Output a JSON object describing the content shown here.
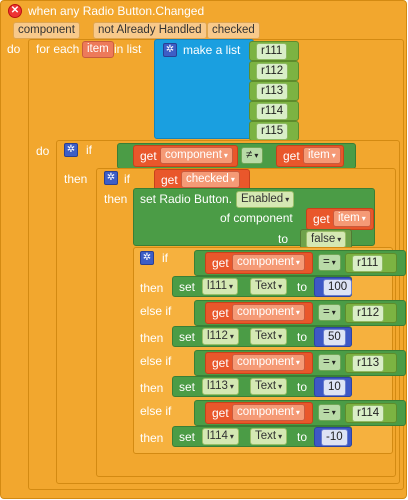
{
  "event": {
    "title": "when any Radio Button.Changed",
    "params": [
      "component",
      "not Already Handled",
      "checked"
    ],
    "do_label": "do"
  },
  "foreach": {
    "label_prefix": "for each",
    "var": "item",
    "label_suffix": "in list",
    "do_label": "do"
  },
  "make_list": {
    "label": "make a list",
    "items": [
      "r111",
      "r112",
      "r113",
      "r114",
      "r115"
    ]
  },
  "outer_if": {
    "if_label": "if",
    "then_label": "then",
    "get_label": "get",
    "left_var": "component",
    "operator": "≠",
    "right_var": "item"
  },
  "inner_if": {
    "if_label": "if",
    "then_label": "then",
    "get_label": "get",
    "var": "checked"
  },
  "set_enabled": {
    "label": "set Radio Button.",
    "property": "Enabled",
    "of_component_label": "of component",
    "get_label": "get",
    "var": "item",
    "to_label": "to",
    "value": "false"
  },
  "if_chain": {
    "if_label": "if",
    "then_label": "then",
    "elseif_label": "else if",
    "get_label": "get",
    "var": "component",
    "operator": "=",
    "set_label": "set",
    "property": "Text",
    "to_label": "to",
    "branches": [
      {
        "radio": "r111",
        "label": "l111",
        "value": "100"
      },
      {
        "radio": "r112",
        "label": "l112",
        "value": "50"
      },
      {
        "radio": "r113",
        "label": "l113",
        "value": "10"
      },
      {
        "radio": "r114",
        "label": "l114",
        "value": "-10"
      }
    ]
  },
  "icons": {
    "dropdown": "▾",
    "gear": "✲",
    "error": "✕"
  }
}
